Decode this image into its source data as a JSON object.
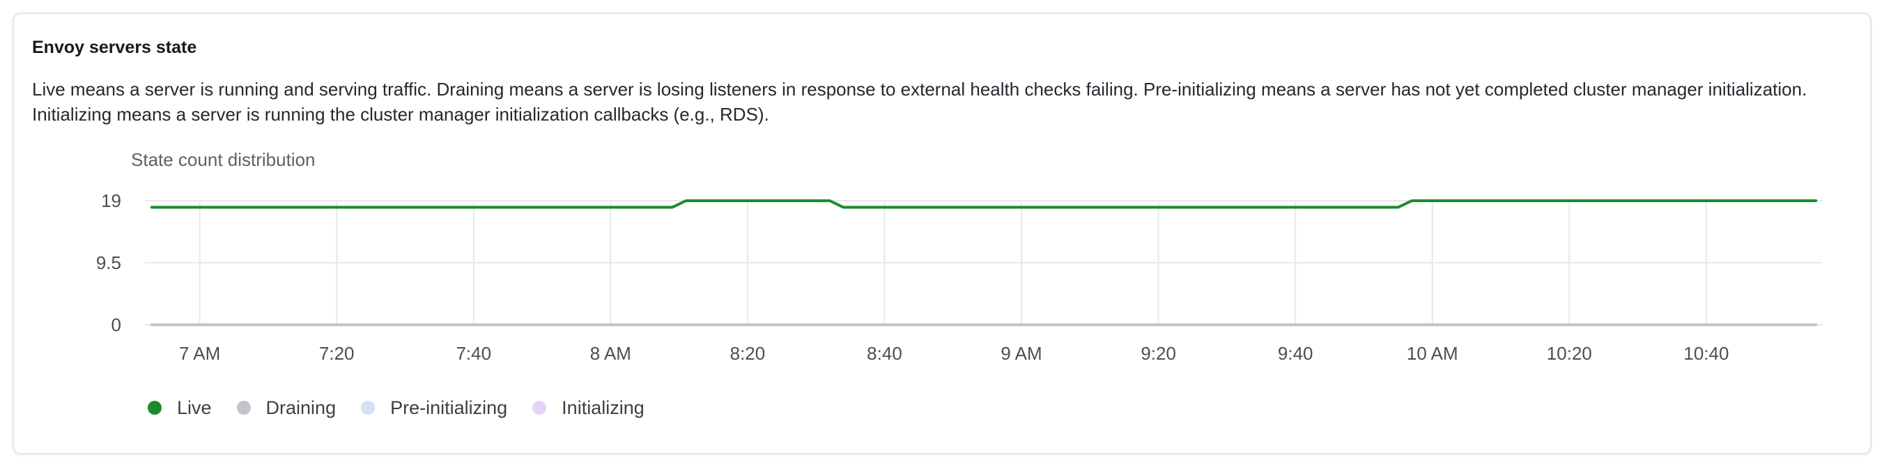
{
  "card": {
    "title": "Envoy servers state",
    "description": "Live means a server is running and serving traffic. Draining means a server is losing listeners in response to external health checks failing. Pre-initializing means a server has not yet completed cluster manager initialization. Initializing means a server is running the cluster manager initialization callbacks (e.g., RDS)."
  },
  "chart_data": {
    "type": "line",
    "title": "State count distribution",
    "xlabel": "",
    "ylabel": "",
    "yticks": [
      "19",
      "9.5",
      "0"
    ],
    "ylim": [
      0,
      19
    ],
    "xlim": [
      "6:52",
      "10:57"
    ],
    "x_ticks": [
      {
        "t": "7:00",
        "label": "7 AM"
      },
      {
        "t": "7:20",
        "label": "7:20"
      },
      {
        "t": "7:40",
        "label": "7:40"
      },
      {
        "t": "8:00",
        "label": "8 AM"
      },
      {
        "t": "8:20",
        "label": "8:20"
      },
      {
        "t": "8:40",
        "label": "8:40"
      },
      {
        "t": "9:00",
        "label": "9 AM"
      },
      {
        "t": "9:20",
        "label": "9:20"
      },
      {
        "t": "9:40",
        "label": "9:40"
      },
      {
        "t": "10:00",
        "label": "10 AM"
      },
      {
        "t": "10:20",
        "label": "10:20"
      },
      {
        "t": "10:40",
        "label": "10:40"
      }
    ],
    "grid": true,
    "legend_position": "bottom-left",
    "series": [
      {
        "name": "Live",
        "color": "#1a8c2e",
        "points": [
          {
            "t": "6:53",
            "y": 18
          },
          {
            "t": "8:09",
            "y": 18
          },
          {
            "t": "8:11",
            "y": 19
          },
          {
            "t": "8:32",
            "y": 19
          },
          {
            "t": "8:34",
            "y": 18
          },
          {
            "t": "9:55",
            "y": 18
          },
          {
            "t": "9:57",
            "y": 19
          },
          {
            "t": "10:56",
            "y": 19
          }
        ]
      },
      {
        "name": "Draining",
        "color": "#c1c4c9",
        "points": [
          {
            "t": "6:53",
            "y": 0
          },
          {
            "t": "10:56",
            "y": 0
          }
        ]
      },
      {
        "name": "Pre-initializing",
        "color": "#cfe3f7",
        "points": [
          {
            "t": "6:53",
            "y": 0
          },
          {
            "t": "10:56",
            "y": 0
          }
        ]
      },
      {
        "name": "Initializing",
        "color": "#e7d3f5",
        "points": [
          {
            "t": "6:53",
            "y": 0
          },
          {
            "t": "10:56",
            "y": 0
          }
        ]
      }
    ]
  }
}
